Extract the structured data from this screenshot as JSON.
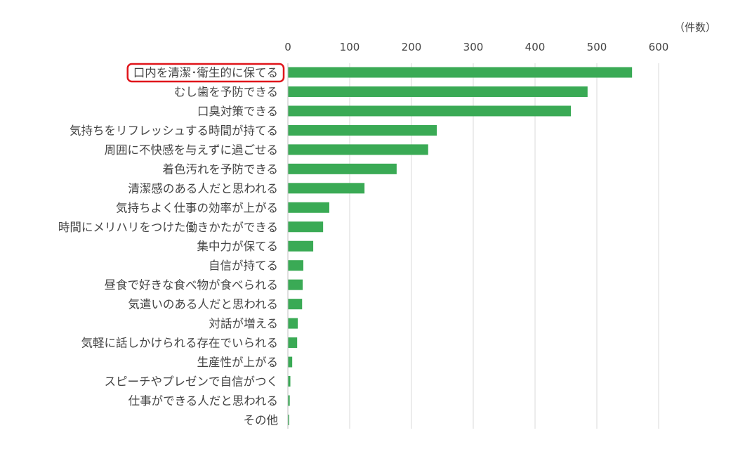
{
  "chart_data": {
    "type": "bar",
    "orientation": "horizontal",
    "unit_label": "（件数）",
    "categories": [
      "口内を清潔･衛生的に保てる",
      "むし歯を予防できる",
      "口臭対策できる",
      "気持ちをリフレッシュする時間が持てる",
      "周囲に不快感を与えずに過ごせる",
      "着色汚れを予防できる",
      "清潔感のある人だと思われる",
      "気持ちよく仕事の効率が上がる",
      "時間にメリハリをつけた働きかたができる",
      "集中力が保てる",
      "自信が持てる",
      "昼食で好きな食べ物が食べられる",
      "気遣いのある人だと思われる",
      "対話が増える",
      "気軽に話しかけられる存在でいられる",
      "生産性が上がる",
      "スピーチやプレゼンで自信がつく",
      "仕事ができる人だと思われる",
      "その他"
    ],
    "values": [
      557,
      485,
      458,
      241,
      227,
      176,
      124,
      67,
      57,
      41,
      25,
      24,
      23,
      16,
      15,
      7,
      4,
      3,
      2
    ],
    "xlim": [
      0,
      600
    ],
    "xticks": [
      0,
      100,
      200,
      300,
      400,
      500,
      600
    ],
    "xtick_labels": [
      "0",
      "100",
      "200",
      "300",
      "400",
      "500",
      "600"
    ],
    "x_axis_position": "top",
    "grid": true,
    "bar_color": "#3aaa55",
    "highlight": {
      "index": 0,
      "outline_color": "#e0151b"
    }
  }
}
